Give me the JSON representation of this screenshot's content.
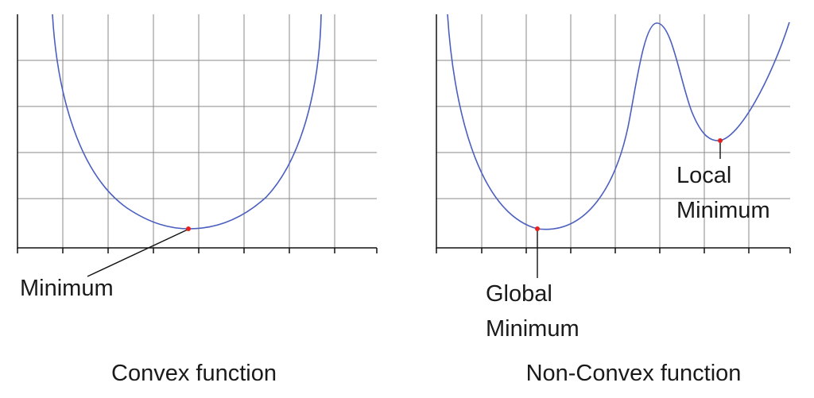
{
  "colors": {
    "curve": "#4a5fbf",
    "min_point": "#e8211e",
    "grid": "#8a8a8a",
    "axis": "#111111"
  },
  "convex": {
    "caption": "Convex function",
    "minimum_label": "Minimum"
  },
  "nonconvex": {
    "caption": "Non-Convex function",
    "global_label_line1": "Global",
    "global_label_line2": "Minimum",
    "local_label_line1": "Local",
    "local_label_line2": "Minimum"
  }
}
